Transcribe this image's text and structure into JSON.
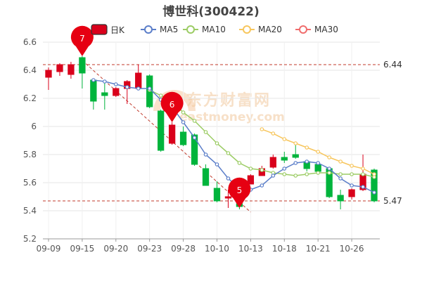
{
  "chart_data": {
    "type": "candlestick",
    "title": "博世科(300422)",
    "legend": [
      {
        "key": "kline",
        "label": "日K",
        "color": "#d9001b"
      },
      {
        "key": "ma5",
        "label": "MA5",
        "color": "#5b7ec9"
      },
      {
        "key": "ma10",
        "label": "MA10",
        "color": "#9ccc65"
      },
      {
        "key": "ma20",
        "label": "MA20",
        "color": "#f7c65d"
      },
      {
        "key": "ma30",
        "label": "MA30",
        "color": "#f06d6d"
      }
    ],
    "legend_position": "top",
    "grid": true,
    "ylim": [
      5.2,
      6.6
    ],
    "y_ticks": [
      "5.2",
      "5.4",
      "5.6",
      "5.8",
      "6",
      "6.2",
      "6.4",
      "6.6"
    ],
    "y_tick_values": [
      5.2,
      5.4,
      5.6,
      5.8,
      6.0,
      6.2,
      6.4,
      6.6
    ],
    "x_ticks": [
      {
        "index": 0,
        "label": "09-09"
      },
      {
        "index": 3,
        "label": "09-15"
      },
      {
        "index": 6,
        "label": "09-20"
      },
      {
        "index": 9,
        "label": "09-23"
      },
      {
        "index": 12,
        "label": "09-28"
      },
      {
        "index": 15,
        "label": "10-10"
      },
      {
        "index": 18,
        "label": "10-13"
      },
      {
        "index": 21,
        "label": "10-18"
      },
      {
        "index": 24,
        "label": "10-21"
      },
      {
        "index": 27,
        "label": "10-26"
      }
    ],
    "colors": {
      "up": "#d9001b",
      "down": "#00b43c",
      "reference": "#c0392b"
    },
    "candles": [
      {
        "open": 6.35,
        "close": 6.4,
        "high": 6.42,
        "low": 6.26
      },
      {
        "open": 6.39,
        "close": 6.44,
        "high": 6.45,
        "low": 6.36
      },
      {
        "open": 6.37,
        "close": 6.44,
        "high": 6.46,
        "low": 6.34
      },
      {
        "open": 6.49,
        "close": 6.38,
        "high": 6.5,
        "low": 6.27
      },
      {
        "open": 6.33,
        "close": 6.18,
        "high": 6.34,
        "low": 6.12
      },
      {
        "open": 6.24,
        "close": 6.22,
        "high": 6.32,
        "low": 6.12
      },
      {
        "open": 6.22,
        "close": 6.27,
        "high": 6.28,
        "low": 6.21
      },
      {
        "open": 6.27,
        "close": 6.32,
        "high": 6.33,
        "low": 6.16
      },
      {
        "open": 6.27,
        "close": 6.38,
        "high": 6.44,
        "low": 6.26
      },
      {
        "open": 6.36,
        "close": 6.14,
        "high": 6.37,
        "low": 6.13
      },
      {
        "open": 6.11,
        "close": 5.83,
        "high": 6.12,
        "low": 5.82
      },
      {
        "open": 5.88,
        "close": 6.01,
        "high": 6.03,
        "low": 5.87
      },
      {
        "open": 5.96,
        "close": 5.87,
        "high": 6.0,
        "low": 5.86
      },
      {
        "open": 5.94,
        "close": 5.73,
        "high": 5.95,
        "low": 5.72
      },
      {
        "open": 5.7,
        "close": 5.58,
        "high": 5.73,
        "low": 5.58
      },
      {
        "open": 5.56,
        "close": 5.47,
        "high": 5.61,
        "low": 5.46
      },
      {
        "open": 5.49,
        "close": 5.5,
        "high": 5.55,
        "low": 5.42
      },
      {
        "open": 5.45,
        "close": 5.43,
        "high": 5.46,
        "low": 5.41
      },
      {
        "open": 5.59,
        "close": 5.65,
        "high": 5.66,
        "low": 5.59
      },
      {
        "open": 5.65,
        "close": 5.7,
        "high": 5.72,
        "low": 5.66
      },
      {
        "open": 5.71,
        "close": 5.78,
        "high": 5.8,
        "low": 5.7
      },
      {
        "open": 5.78,
        "close": 5.76,
        "high": 5.82,
        "low": 5.74
      },
      {
        "open": 5.8,
        "close": 5.78,
        "high": 5.87,
        "low": 5.77
      },
      {
        "open": 5.75,
        "close": 5.7,
        "high": 5.76,
        "low": 5.68
      },
      {
        "open": 5.73,
        "close": 5.68,
        "high": 5.74,
        "low": 5.66
      },
      {
        "open": 5.7,
        "close": 5.5,
        "high": 5.71,
        "low": 5.49
      },
      {
        "open": 5.51,
        "close": 5.47,
        "high": 5.55,
        "low": 5.41
      },
      {
        "open": 5.5,
        "close": 5.55,
        "high": 5.56,
        "low": 5.48
      },
      {
        "open": 5.55,
        "close": 5.66,
        "high": 5.8,
        "low": 5.54
      },
      {
        "open": 5.69,
        "close": 5.47,
        "high": 5.7,
        "low": 5.46
      }
    ],
    "ma5": [
      null,
      null,
      null,
      null,
      6.33,
      6.32,
      6.3,
      6.28,
      6.27,
      6.27,
      6.19,
      6.14,
      6.03,
      5.92,
      5.8,
      5.73,
      5.63,
      5.56,
      5.55,
      5.58,
      5.65,
      5.7,
      5.74,
      5.75,
      5.74,
      5.7,
      5.63,
      5.58,
      5.57,
      5.53
    ],
    "ma10": [
      null,
      null,
      null,
      null,
      null,
      null,
      null,
      null,
      null,
      6.26,
      6.22,
      6.18,
      6.1,
      6.04,
      5.96,
      5.88,
      5.81,
      5.74,
      5.7,
      5.69,
      5.67,
      5.66,
      5.65,
      5.66,
      5.67,
      5.67,
      5.66,
      5.66,
      5.66,
      5.64
    ],
    "ma20": [
      null,
      null,
      null,
      null,
      null,
      null,
      null,
      null,
      null,
      null,
      null,
      null,
      null,
      null,
      null,
      null,
      null,
      null,
      null,
      5.98,
      5.95,
      5.91,
      5.88,
      5.85,
      5.82,
      5.78,
      5.75,
      5.72,
      5.7,
      5.66
    ],
    "ma30": [],
    "reference_lines": [
      {
        "value": 6.44,
        "label": "6.44"
      },
      {
        "value": 5.47,
        "label": "5.47"
      }
    ],
    "trend_line": {
      "from_index": 3,
      "from_value": 6.47,
      "to_index": 18,
      "to_value": 5.39
    },
    "markers": [
      {
        "index": 3,
        "value": 6.5,
        "label": "7"
      },
      {
        "index": 11,
        "value": 6.03,
        "label": "6"
      },
      {
        "index": 17,
        "value": 5.42,
        "label": "5"
      }
    ],
    "watermark": "东方财富网",
    "watermark_sub": "eastmoney.com"
  }
}
